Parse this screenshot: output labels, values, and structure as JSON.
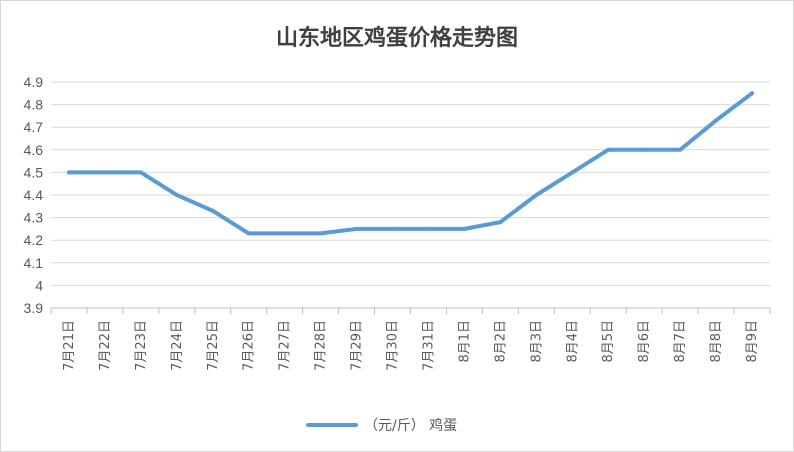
{
  "chart_data": {
    "type": "line",
    "title": "山东地区鸡蛋价格走势图",
    "categories": [
      "7月21日",
      "7月22日",
      "7月23日",
      "7月24日",
      "7月25日",
      "7月26日",
      "7月27日",
      "7月28日",
      "7月29日",
      "7月30日",
      "7月31日",
      "8月1日",
      "8月2日",
      "8月3日",
      "8月4日",
      "8月5日",
      "8月6日",
      "8月7日",
      "8月8日",
      "8月9日"
    ],
    "series": [
      {
        "name": "（元/斤） 鸡蛋",
        "values": [
          4.5,
          4.5,
          4.5,
          4.4,
          4.33,
          4.23,
          4.23,
          4.23,
          4.25,
          4.25,
          4.25,
          4.25,
          4.28,
          4.4,
          4.5,
          4.6,
          4.6,
          4.6,
          4.73,
          4.85
        ],
        "color": "#5b9bd5"
      }
    ],
    "yticks": [
      "3.9",
      "4",
      "4.1",
      "4.2",
      "4.3",
      "4.4",
      "4.5",
      "4.6",
      "4.7",
      "4.8",
      "4.9"
    ],
    "ylim": [
      3.9,
      4.9
    ],
    "grid": true,
    "legend": "bottom",
    "xlabel": "",
    "ylabel": ""
  },
  "colors": {
    "series": "#5b9bd5",
    "grid": "#d9d9d9",
    "text": "#595959",
    "title": "#404040"
  }
}
